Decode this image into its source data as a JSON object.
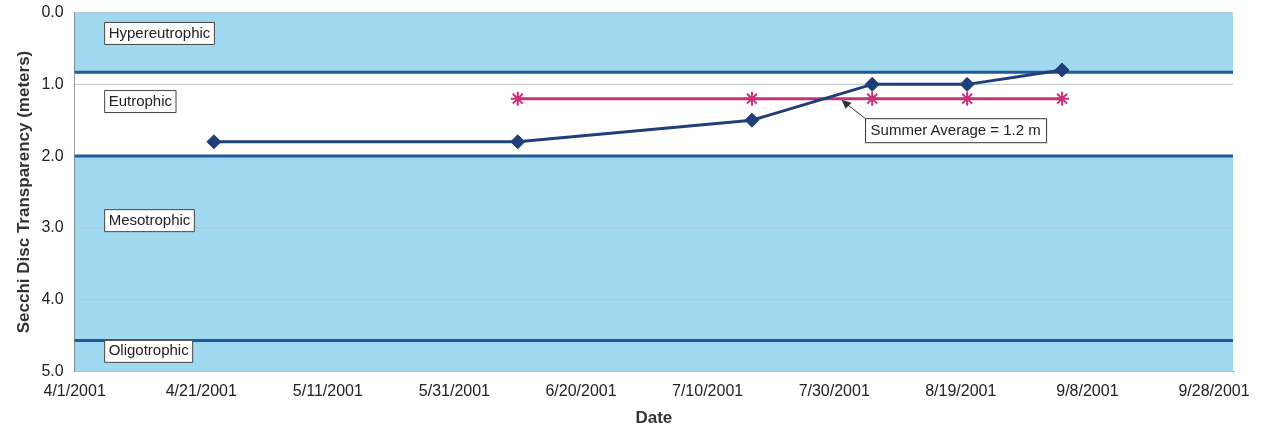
{
  "chart_data": {
    "type": "line",
    "xlabel": "Date",
    "ylabel": "Secchi Disc Transparency (meters)",
    "xlim": [
      "2001-04-01",
      "2001-10-01"
    ],
    "ylim": [
      5,
      0
    ],
    "xticks": [
      {
        "value": "2001-04-01",
        "label": "4/1/2001"
      },
      {
        "value": "2001-04-21",
        "label": "4/21/2001"
      },
      {
        "value": "2001-05-11",
        "label": "5/11/2001"
      },
      {
        "value": "2001-05-31",
        "label": "5/31/2001"
      },
      {
        "value": "2001-06-20",
        "label": "6/20/2001"
      },
      {
        "value": "2001-07-10",
        "label": "7/10/2001"
      },
      {
        "value": "2001-07-30",
        "label": "7/30/2001"
      },
      {
        "value": "2001-08-19",
        "label": "8/19/2001"
      },
      {
        "value": "2001-09-08",
        "label": "9/8/2001"
      },
      {
        "value": "2001-09-28",
        "label": "9/28/2001"
      }
    ],
    "yticks": [
      {
        "value": 0,
        "label": "0.0"
      },
      {
        "value": 1,
        "label": "1.0"
      },
      {
        "value": 2,
        "label": "2.0"
      },
      {
        "value": 3,
        "label": "3.0"
      },
      {
        "value": 4,
        "label": "4.0"
      },
      {
        "value": 5,
        "label": "5.0"
      }
    ],
    "grid": "y",
    "legend": false,
    "series": [
      {
        "color": "#1f3f7a",
        "marker": "diamond",
        "x": [
          "2001-04-23",
          "2001-06-10",
          "2001-07-17",
          "2001-08-05",
          "2001-08-20",
          "2001-09-04"
        ],
        "values": [
          1.8,
          1.8,
          1.5,
          1.0,
          1.0,
          0.8
        ]
      },
      {
        "color": "#c8307a",
        "marker": "cross",
        "x": [
          "2001-06-10",
          "2001-07-17",
          "2001-08-05",
          "2001-08-20",
          "2001-09-04"
        ],
        "values": [
          1.2,
          1.2,
          1.2,
          1.2,
          1.2
        ]
      }
    ],
    "bands": [
      {
        "axis": "y",
        "from": 0,
        "to": 0.83,
        "label": "Hypereutrophic",
        "color": "#9fd8ef"
      },
      {
        "axis": "y",
        "from": 0.83,
        "to": 2.0,
        "label": "Eutrophic",
        "color": "#ffffff"
      },
      {
        "axis": "y",
        "from": 2.0,
        "to": 4.57,
        "label": "Mesotrophic",
        "color": "#9fd8ef"
      },
      {
        "axis": "y",
        "from": 4.57,
        "to": 5,
        "label": "Oligotrophic",
        "color": "#9fd8ef"
      }
    ],
    "ref_lines": [
      {
        "axis": "y",
        "value": 0.83,
        "color": "#1f5a9a"
      },
      {
        "axis": "y",
        "value": 2.0,
        "color": "#1f5a9a"
      },
      {
        "axis": "y",
        "value": 4.57,
        "color": "#1f5a9a"
      }
    ],
    "annotations": [
      {
        "text": "Summer Average = 1.2 m",
        "x": "2001-07-31",
        "y": 1.2
      }
    ]
  }
}
